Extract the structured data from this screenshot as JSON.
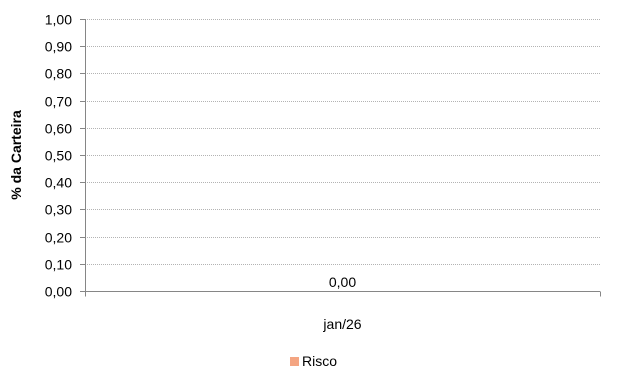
{
  "chart_data": {
    "type": "bar",
    "categories": [
      "jan/26"
    ],
    "series": [
      {
        "name": "Risco",
        "values": [
          0.0
        ],
        "data_labels": [
          "0,00"
        ],
        "color": "#f4a582"
      }
    ],
    "ylabel": "% da Carteira",
    "xlabel": "",
    "ylim": [
      0,
      1
    ],
    "yticks": [
      0.0,
      0.1,
      0.2,
      0.3,
      0.4,
      0.5,
      0.6,
      0.7,
      0.8,
      0.9,
      1.0
    ],
    "ytick_labels": [
      "0,00",
      "0,10",
      "0,20",
      "0,30",
      "0,40",
      "0,50",
      "0,60",
      "0,70",
      "0,80",
      "0,90",
      "1,00"
    ],
    "grid": true,
    "legend_position": "bottom"
  }
}
